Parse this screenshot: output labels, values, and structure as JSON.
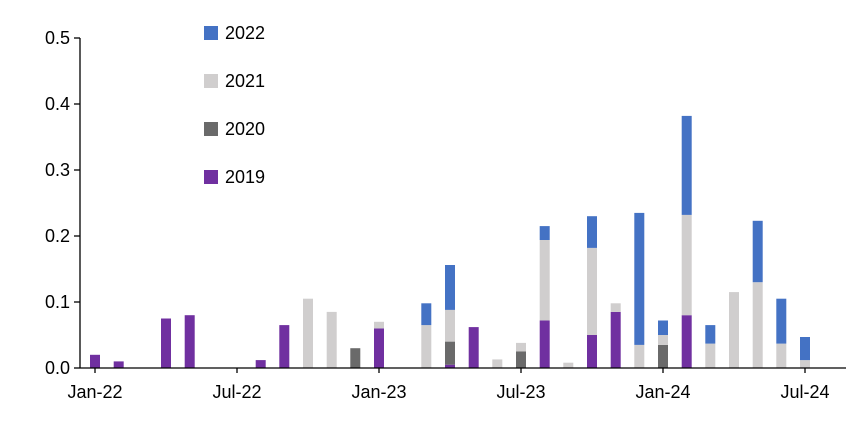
{
  "chart_data": {
    "type": "bar",
    "stacked": true,
    "title": "",
    "xlabel": "",
    "ylabel": "",
    "ylim": [
      0,
      0.5
    ],
    "yticks": [
      0.0,
      0.1,
      0.2,
      0.3,
      0.4,
      0.5
    ],
    "ytick_labels": [
      "0.0",
      "0.1",
      "0.2",
      "0.3",
      "0.4",
      "0.5"
    ],
    "grid": false,
    "legend_position": "top-left",
    "axis_color": "#000000",
    "categories": [
      "Jan-22",
      "Feb-22",
      "Mar-22",
      "Apr-22",
      "May-22",
      "Jun-22",
      "Jul-22",
      "Aug-22",
      "Sep-22",
      "Oct-22",
      "Nov-22",
      "Dec-22",
      "Jan-23",
      "Feb-23",
      "Mar-23",
      "Apr-23",
      "May-23",
      "Jun-23",
      "Jul-23",
      "Aug-23",
      "Sep-23",
      "Oct-23",
      "Nov-23",
      "Dec-23",
      "Jan-24",
      "Feb-24",
      "Mar-24",
      "Apr-24",
      "May-24",
      "Jun-24",
      "Jul-24"
    ],
    "xtick_labels": [
      "Jan-22",
      "Jul-22",
      "Jan-23",
      "Jul-23",
      "Jan-24",
      "Jul-24"
    ],
    "xtick_indices": [
      0,
      6,
      12,
      18,
      24,
      30
    ],
    "stack_order": [
      "2019",
      "2020",
      "2021",
      "2022"
    ],
    "series": [
      {
        "name": "2022",
        "color": "#4472C4",
        "values": [
          0,
          0,
          0,
          0,
          0,
          0,
          0,
          0,
          0,
          0,
          0,
          0,
          0,
          0,
          0.033,
          0.068,
          0,
          0,
          0,
          0.021,
          0,
          0.048,
          0,
          0.2,
          0.022,
          0.15,
          0.028,
          0,
          0.093,
          0.068,
          0.035
        ]
      },
      {
        "name": "2021",
        "color": "#D0CECE",
        "values": [
          0,
          0,
          0,
          0,
          0,
          0,
          0,
          0,
          0,
          0.105,
          0.085,
          0,
          0.01,
          0,
          0.065,
          0.048,
          0,
          0.013,
          0.013,
          0.122,
          0.008,
          0.132,
          0.013,
          0.035,
          0.015,
          0.152,
          0.037,
          0.115,
          0.13,
          0.037,
          0.012
        ]
      },
      {
        "name": "2020",
        "color": "#6A6A6A",
        "values": [
          0,
          0,
          0,
          0,
          0,
          0,
          0,
          0,
          0,
          0,
          0,
          0.03,
          0,
          0,
          0,
          0.035,
          0,
          0,
          0.025,
          0,
          0,
          0,
          0,
          0,
          0.035,
          0,
          0,
          0,
          0,
          0,
          0
        ]
      },
      {
        "name": "2019",
        "color": "#7030A0",
        "values": [
          0.02,
          0.01,
          0,
          0.075,
          0.08,
          0,
          0,
          0.012,
          0.065,
          0,
          0,
          0,
          0.06,
          0,
          0,
          0.005,
          0.062,
          0,
          0,
          0.072,
          0,
          0.05,
          0.085,
          0,
          0,
          0.08,
          0,
          0,
          0,
          0,
          0
        ]
      }
    ]
  }
}
